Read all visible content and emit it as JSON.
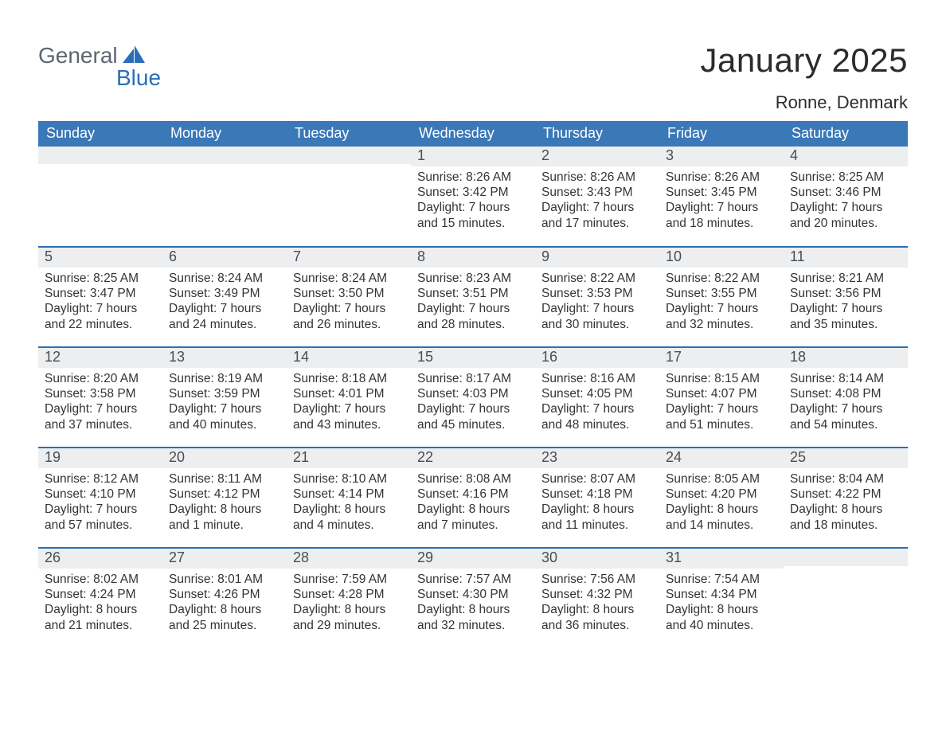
{
  "logo": {
    "text_general": "General",
    "text_blue": "Blue",
    "shape_color": "#2a6eb8",
    "general_color": "#5c6670",
    "blue_color": "#2a6eb8"
  },
  "header": {
    "month_title": "January 2025",
    "location": "Ronne, Denmark",
    "title_fontsize": 42,
    "location_fontsize": 22
  },
  "calendar": {
    "type": "table",
    "header_bg": "#3a78b8",
    "header_text_color": "#ffffff",
    "row_separator_color": "#2a6eb8",
    "daynum_bg": "#eceeef",
    "text_color": "#343434",
    "columns": [
      "Sunday",
      "Monday",
      "Tuesday",
      "Wednesday",
      "Thursday",
      "Friday",
      "Saturday"
    ],
    "weeks": [
      [
        null,
        null,
        null,
        {
          "n": "1",
          "sunrise": "8:26 AM",
          "sunset": "3:42 PM",
          "daylight": "7 hours and 15 minutes."
        },
        {
          "n": "2",
          "sunrise": "8:26 AM",
          "sunset": "3:43 PM",
          "daylight": "7 hours and 17 minutes."
        },
        {
          "n": "3",
          "sunrise": "8:26 AM",
          "sunset": "3:45 PM",
          "daylight": "7 hours and 18 minutes."
        },
        {
          "n": "4",
          "sunrise": "8:25 AM",
          "sunset": "3:46 PM",
          "daylight": "7 hours and 20 minutes."
        }
      ],
      [
        {
          "n": "5",
          "sunrise": "8:25 AM",
          "sunset": "3:47 PM",
          "daylight": "7 hours and 22 minutes."
        },
        {
          "n": "6",
          "sunrise": "8:24 AM",
          "sunset": "3:49 PM",
          "daylight": "7 hours and 24 minutes."
        },
        {
          "n": "7",
          "sunrise": "8:24 AM",
          "sunset": "3:50 PM",
          "daylight": "7 hours and 26 minutes."
        },
        {
          "n": "8",
          "sunrise": "8:23 AM",
          "sunset": "3:51 PM",
          "daylight": "7 hours and 28 minutes."
        },
        {
          "n": "9",
          "sunrise": "8:22 AM",
          "sunset": "3:53 PM",
          "daylight": "7 hours and 30 minutes."
        },
        {
          "n": "10",
          "sunrise": "8:22 AM",
          "sunset": "3:55 PM",
          "daylight": "7 hours and 32 minutes."
        },
        {
          "n": "11",
          "sunrise": "8:21 AM",
          "sunset": "3:56 PM",
          "daylight": "7 hours and 35 minutes."
        }
      ],
      [
        {
          "n": "12",
          "sunrise": "8:20 AM",
          "sunset": "3:58 PM",
          "daylight": "7 hours and 37 minutes."
        },
        {
          "n": "13",
          "sunrise": "8:19 AM",
          "sunset": "3:59 PM",
          "daylight": "7 hours and 40 minutes."
        },
        {
          "n": "14",
          "sunrise": "8:18 AM",
          "sunset": "4:01 PM",
          "daylight": "7 hours and 43 minutes."
        },
        {
          "n": "15",
          "sunrise": "8:17 AM",
          "sunset": "4:03 PM",
          "daylight": "7 hours and 45 minutes."
        },
        {
          "n": "16",
          "sunrise": "8:16 AM",
          "sunset": "4:05 PM",
          "daylight": "7 hours and 48 minutes."
        },
        {
          "n": "17",
          "sunrise": "8:15 AM",
          "sunset": "4:07 PM",
          "daylight": "7 hours and 51 minutes."
        },
        {
          "n": "18",
          "sunrise": "8:14 AM",
          "sunset": "4:08 PM",
          "daylight": "7 hours and 54 minutes."
        }
      ],
      [
        {
          "n": "19",
          "sunrise": "8:12 AM",
          "sunset": "4:10 PM",
          "daylight": "7 hours and 57 minutes."
        },
        {
          "n": "20",
          "sunrise": "8:11 AM",
          "sunset": "4:12 PM",
          "daylight": "8 hours and 1 minute."
        },
        {
          "n": "21",
          "sunrise": "8:10 AM",
          "sunset": "4:14 PM",
          "daylight": "8 hours and 4 minutes."
        },
        {
          "n": "22",
          "sunrise": "8:08 AM",
          "sunset": "4:16 PM",
          "daylight": "8 hours and 7 minutes."
        },
        {
          "n": "23",
          "sunrise": "8:07 AM",
          "sunset": "4:18 PM",
          "daylight": "8 hours and 11 minutes."
        },
        {
          "n": "24",
          "sunrise": "8:05 AM",
          "sunset": "4:20 PM",
          "daylight": "8 hours and 14 minutes."
        },
        {
          "n": "25",
          "sunrise": "8:04 AM",
          "sunset": "4:22 PM",
          "daylight": "8 hours and 18 minutes."
        }
      ],
      [
        {
          "n": "26",
          "sunrise": "8:02 AM",
          "sunset": "4:24 PM",
          "daylight": "8 hours and 21 minutes."
        },
        {
          "n": "27",
          "sunrise": "8:01 AM",
          "sunset": "4:26 PM",
          "daylight": "8 hours and 25 minutes."
        },
        {
          "n": "28",
          "sunrise": "7:59 AM",
          "sunset": "4:28 PM",
          "daylight": "8 hours and 29 minutes."
        },
        {
          "n": "29",
          "sunrise": "7:57 AM",
          "sunset": "4:30 PM",
          "daylight": "8 hours and 32 minutes."
        },
        {
          "n": "30",
          "sunrise": "7:56 AM",
          "sunset": "4:32 PM",
          "daylight": "8 hours and 36 minutes."
        },
        {
          "n": "31",
          "sunrise": "7:54 AM",
          "sunset": "4:34 PM",
          "daylight": "8 hours and 40 minutes."
        },
        null
      ]
    ],
    "labels": {
      "sunrise": "Sunrise: ",
      "sunset": "Sunset: ",
      "daylight": "Daylight: "
    }
  }
}
